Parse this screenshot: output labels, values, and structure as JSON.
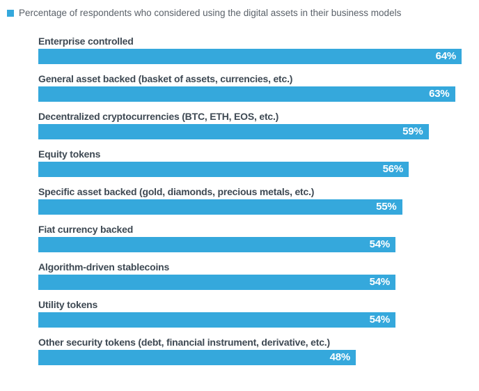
{
  "legend": {
    "label": "Percentage of respondents who considered using the digital assets in their business models",
    "swatch_color": "#35a8dc"
  },
  "chart_data": {
    "type": "bar",
    "orientation": "horizontal",
    "title": "Percentage of respondents who considered using the digital assets in their business models",
    "categories": [
      "Enterprise controlled",
      "General asset backed (basket of assets, currencies, etc.)",
      "Decentralized cryptocurrencies (BTC, ETH, EOS, etc.)",
      "Equity tokens",
      "Specific asset backed (gold, diamonds, precious metals, etc.)",
      "Fiat currency backed",
      "Algorithm-driven stablecoins",
      "Utility tokens",
      "Other security tokens (debt, financial instrument, derivative, etc.)"
    ],
    "values": [
      64,
      63,
      59,
      56,
      55,
      54,
      54,
      54,
      48
    ],
    "value_labels": [
      "64%",
      "63%",
      "59%",
      "56%",
      "55%",
      "54%",
      "54%",
      "54%",
      "48%"
    ],
    "value_suffix": "%",
    "xlim": [
      0,
      66.6
    ],
    "bar_color": "#35a8dc",
    "value_label_color": "#ffffff",
    "grid": false,
    "legend_position": "top-left",
    "value_labels_inside_bars": true
  }
}
